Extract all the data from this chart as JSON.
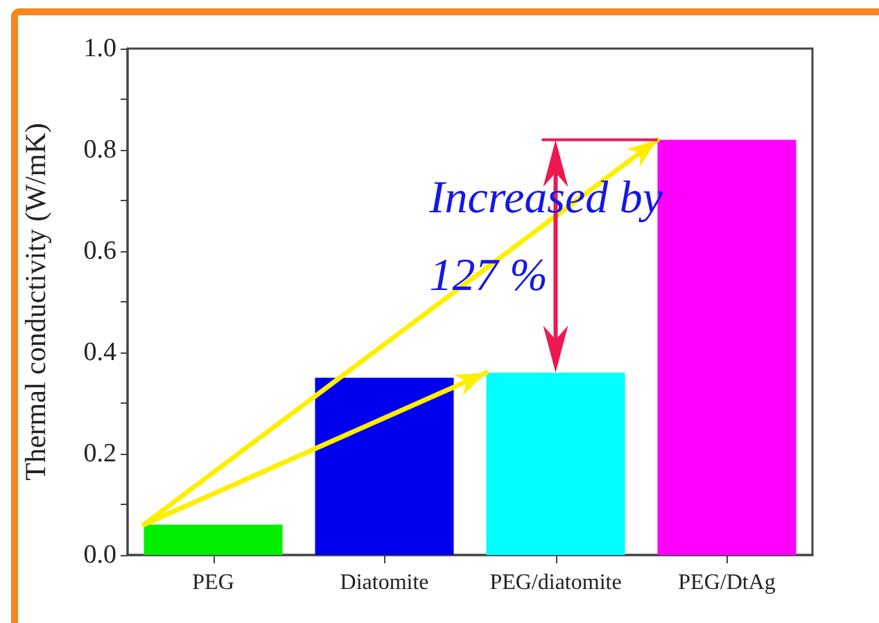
{
  "chart_data": {
    "type": "bar",
    "ylabel": "Thermal conductivity (W/mK)",
    "categories": [
      "PEG",
      "Diatomite",
      "PEG/diatomite",
      "PEG/DtAg"
    ],
    "values": [
      0.06,
      0.35,
      0.36,
      0.82
    ],
    "colors": [
      "#00ee00",
      "#0000ee",
      "#00ffff",
      "#ff00ff"
    ],
    "ylim": [
      0,
      1
    ],
    "yticks": [
      {
        "value": 0,
        "label": "0.0"
      },
      {
        "value": 0.1,
        "label": null
      },
      {
        "value": 0.2,
        "label": "0.2"
      },
      {
        "value": 0.3,
        "label": null
      },
      {
        "value": 0.4,
        "label": "0.4"
      },
      {
        "value": 0.5,
        "label": null
      },
      {
        "value": 0.6,
        "label": "0.6"
      },
      {
        "value": 0.7,
        "label": null
      },
      {
        "value": 0.8,
        "label": "0.8"
      },
      {
        "value": 0.9,
        "label": null
      },
      {
        "value": 1,
        "label": "1.0"
      }
    ],
    "annotations": [
      "Increased by 127 %"
    ],
    "grid": false
  }
}
